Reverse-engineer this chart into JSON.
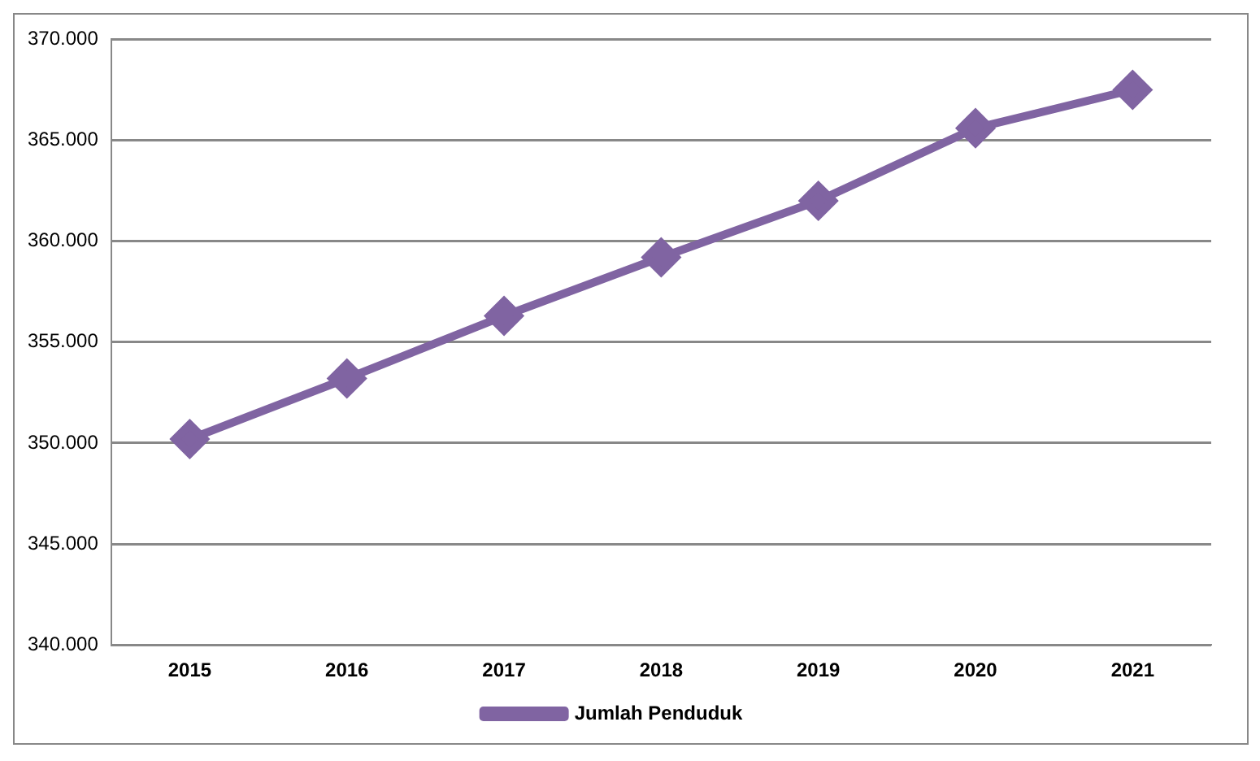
{
  "chart_data": {
    "type": "line",
    "categories": [
      "2015",
      "2016",
      "2017",
      "2018",
      "2019",
      "2020",
      "2021"
    ],
    "series": [
      {
        "name": "Jumlah Penduduk",
        "color": "#8064a2",
        "values": [
          350200,
          353200,
          356300,
          359200,
          362000,
          365600,
          367500
        ]
      }
    ],
    "ylim": [
      340000,
      370000
    ],
    "yticks": [
      {
        "value": 340000,
        "label": "340.000"
      },
      {
        "value": 345000,
        "label": "345.000"
      },
      {
        "value": 350000,
        "label": "350.000"
      },
      {
        "value": 355000,
        "label": "355.000"
      },
      {
        "value": 360000,
        "label": "360.000"
      },
      {
        "value": 365000,
        "label": "365.000"
      },
      {
        "value": 370000,
        "label": "370.000"
      }
    ],
    "grid": "y",
    "legend": "bottom",
    "marker": "diamond",
    "line_style": "solid"
  }
}
